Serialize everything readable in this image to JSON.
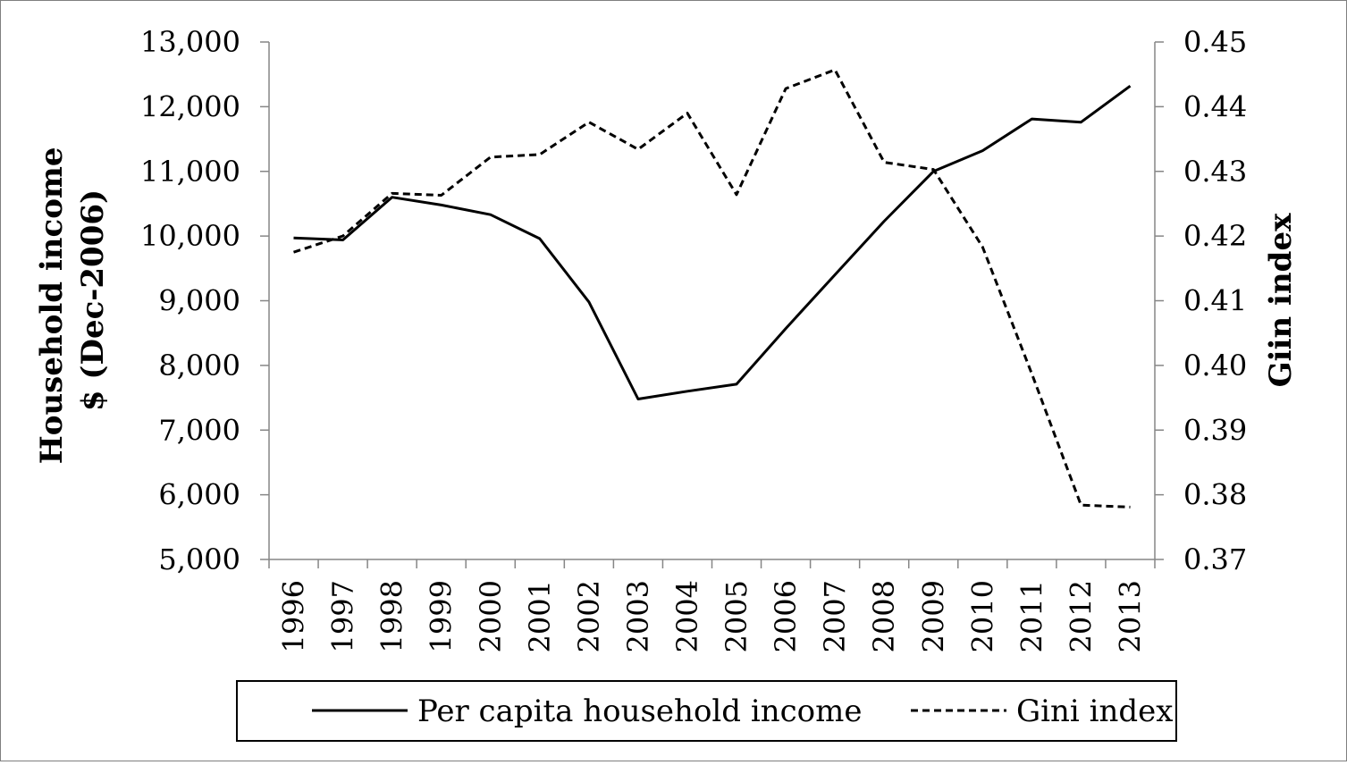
{
  "chart_data": {
    "type": "line",
    "x": [
      "1996",
      "1997",
      "1998",
      "1999",
      "2000",
      "2001",
      "2002",
      "2003",
      "2004",
      "2005",
      "2006",
      "2007",
      "2008",
      "2009",
      "2010",
      "2011",
      "2012",
      "2013"
    ],
    "y_left": {
      "label_line1": "Household income",
      "label_line2": "$ (Dec-2006)",
      "lim": [
        5000,
        13000
      ],
      "ticks": [
        5000,
        6000,
        7000,
        8000,
        9000,
        10000,
        11000,
        12000,
        13000
      ],
      "tick_labels": [
        "5,000",
        "6,000",
        "7,000",
        "8,000",
        "9,000",
        "10,000",
        "11,000",
        "12,000",
        "13,000"
      ]
    },
    "y_right": {
      "label": "Giin index",
      "lim": [
        0.37,
        0.45
      ],
      "ticks": [
        0.37,
        0.38,
        0.39,
        0.4,
        0.41,
        0.42,
        0.43,
        0.44,
        0.45
      ],
      "tick_labels": [
        "0.37",
        "0.38",
        "0.39",
        "0.40",
        "0.41",
        "0.42",
        "0.43",
        "0.44",
        "0.45"
      ]
    },
    "series": [
      {
        "name": "Per capita household income",
        "axis": "left",
        "style": "solid",
        "color": "#000000",
        "values": [
          9970,
          9940,
          10600,
          10480,
          10330,
          9960,
          8980,
          7480,
          7600,
          7710,
          8570,
          9400,
          10230,
          11000,
          11320,
          11810,
          11760,
          12320
        ]
      },
      {
        "name": "Gini index",
        "axis": "right",
        "style": "dashed",
        "color": "#000000",
        "values": [
          0.4175,
          0.42,
          0.4266,
          0.4263,
          0.4322,
          0.4326,
          0.4376,
          0.4334,
          0.439,
          0.4264,
          0.4428,
          0.4457,
          0.4314,
          0.4303,
          0.4183,
          0.3987,
          0.3784,
          0.3781
        ]
      }
    ],
    "grid": false,
    "legend_position": "bottom"
  }
}
